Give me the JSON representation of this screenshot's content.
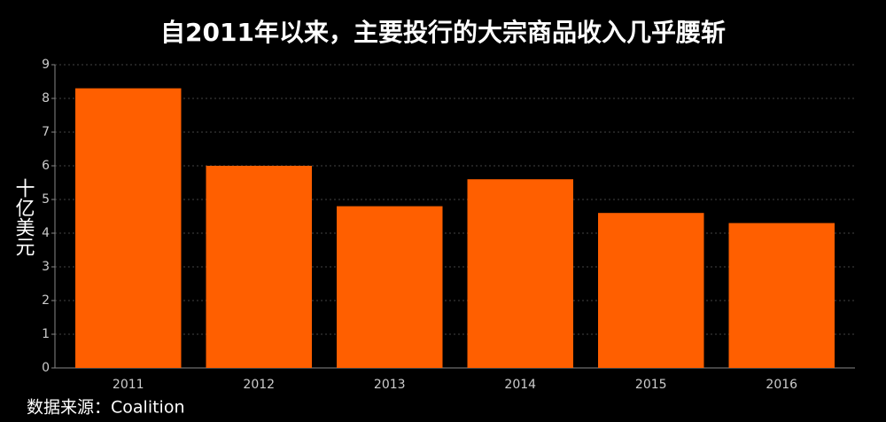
{
  "chart_data": {
    "type": "bar",
    "title": "自2011年以来，主要投行的大宗商品收入几乎腰斩",
    "y_label": "十亿美元",
    "source": "数据来源：Coalition",
    "categories": [
      "2011",
      "2012",
      "2013",
      "2014",
      "2015",
      "2016"
    ],
    "values": [
      8.3,
      6.0,
      4.8,
      5.6,
      4.6,
      4.3
    ],
    "color": "#ff5f00",
    "ylim": [
      0,
      9
    ],
    "yticks": [
      0,
      1,
      2,
      3,
      4,
      5,
      6,
      7,
      8,
      9
    ],
    "grid": true
  }
}
